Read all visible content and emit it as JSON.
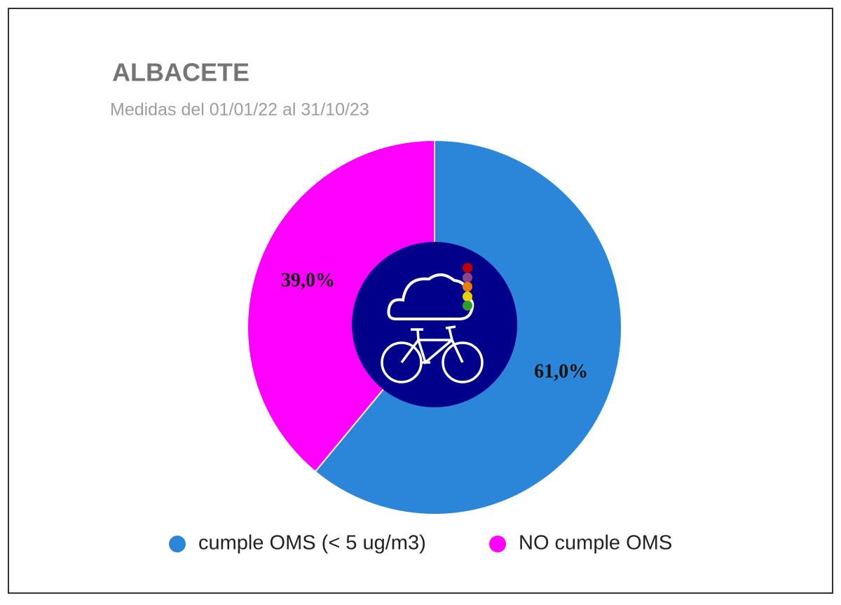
{
  "chart_data": {
    "type": "pie",
    "title": "ALBACETE",
    "subtitle": "Medidas del 01/01/22 al 31/10/23",
    "categories": [
      "cumple OMS (< 5 ug/m3)",
      "NO cumple OMS"
    ],
    "values": [
      61.0,
      39.0
    ],
    "value_labels": [
      "61,0%",
      "39,0%"
    ],
    "colors": [
      "#2b86d9",
      "#ff00ff"
    ]
  }
}
